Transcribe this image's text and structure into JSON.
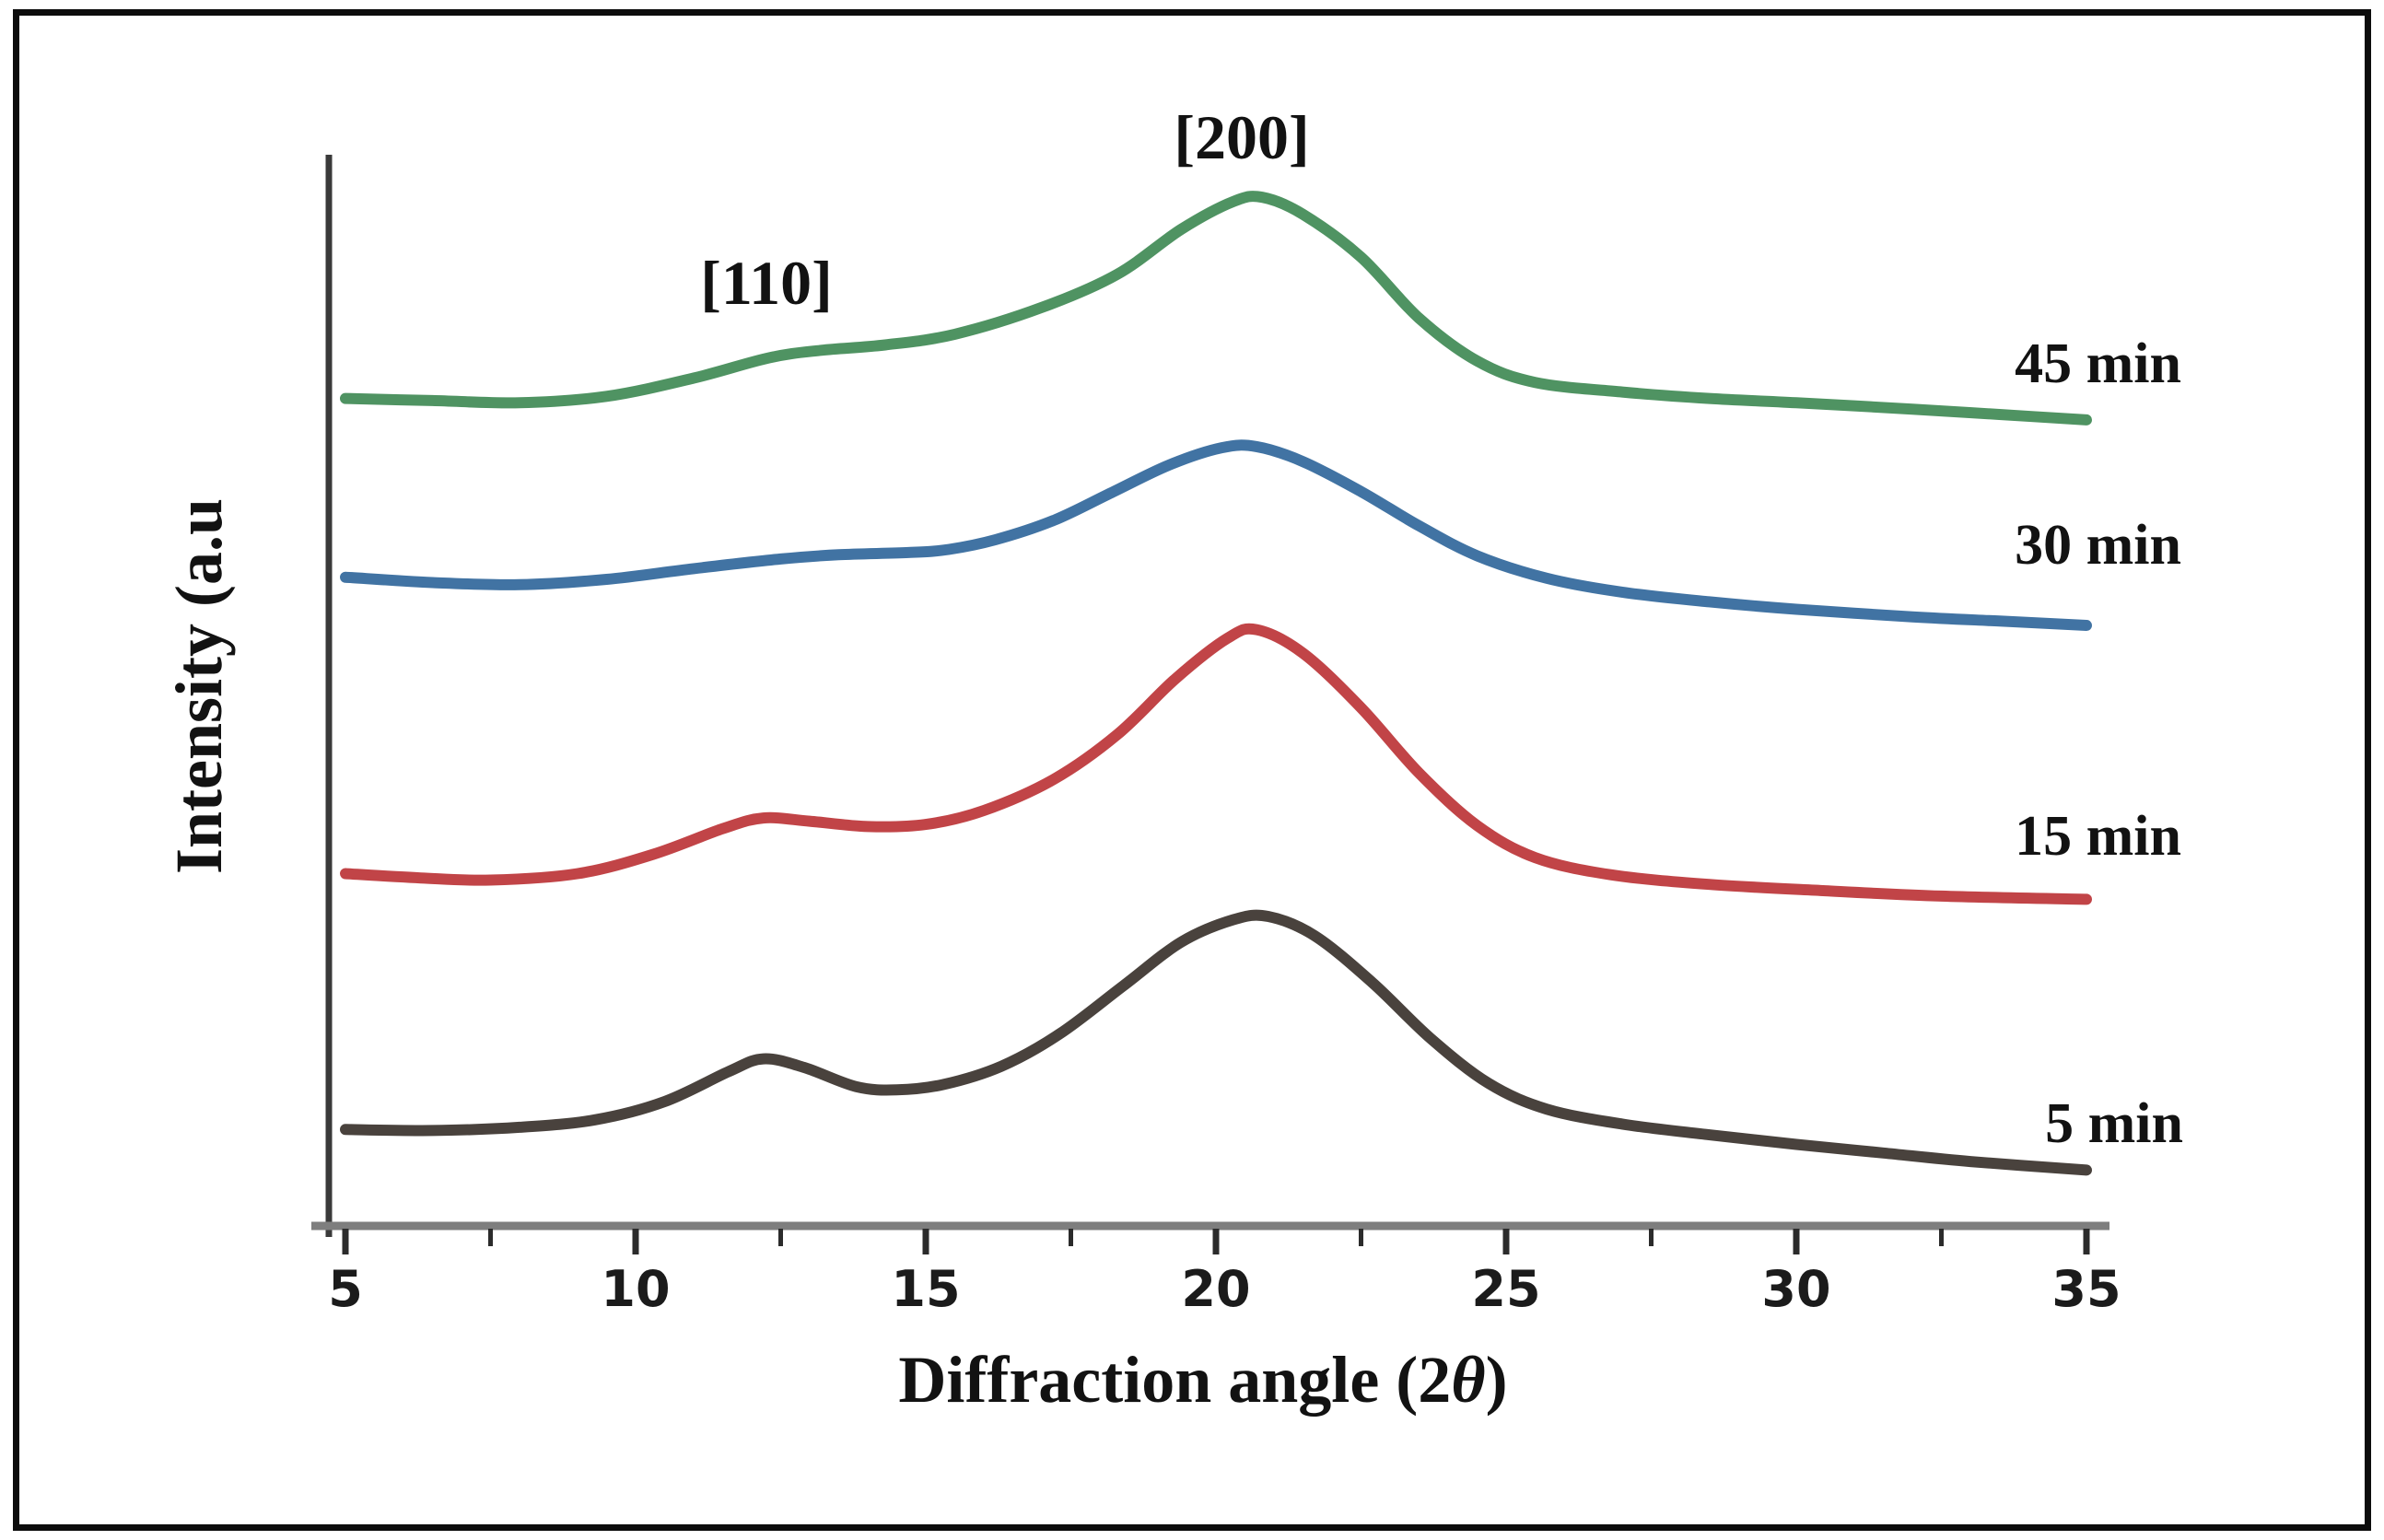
{
  "figure": {
    "frame_color": "#0c0c0c",
    "background_color": "#ffffff",
    "axis_line_color": "#7e7e7e",
    "y_axis_line_color": "#3a3a3a",
    "tick_color": "#2b2b2b",
    "text_color": "#121212"
  },
  "chart_data": {
    "type": "line",
    "title": "",
    "xlabel": "Diffraction angle (2θ)",
    "xlabel_parts": {
      "prefix": "Diffraction angle (2",
      "theta": "θ",
      "suffix": ")"
    },
    "ylabel": "Intensity (a.u",
    "x_range": [
      5,
      35
    ],
    "x_major_ticks": [
      5,
      10,
      15,
      20,
      25,
      30,
      35
    ],
    "x_minor_ticks": [
      7.5,
      12.5,
      17.5,
      22.5,
      27.5,
      32.5
    ],
    "y_axis_note": "arbitrary units, no tick labels; curves vertically offset",
    "intensity_units": "relative plot height percent (a.u.)",
    "grid": false,
    "legend_position": "labels at right end of each curve",
    "peak_annotations": [
      {
        "label": "[110]",
        "x_2theta": 12.3
      },
      {
        "label": "[200]",
        "x_2theta": 20.6
      }
    ],
    "series": [
      {
        "name": "45 min",
        "color": "#4f9362",
        "points": [
          [
            5,
            77.4
          ],
          [
            6.5,
            77.2
          ],
          [
            8,
            77.0
          ],
          [
            9.5,
            77.6
          ],
          [
            11,
            79.3
          ],
          [
            12.3,
            81.2
          ],
          [
            13.2,
            81.9
          ],
          [
            14.3,
            82.4
          ],
          [
            15.5,
            83.4
          ],
          [
            17,
            85.9
          ],
          [
            18.3,
            89.0
          ],
          [
            19.4,
            93.2
          ],
          [
            20.3,
            95.8
          ],
          [
            20.8,
            96.2
          ],
          [
            21.5,
            94.6
          ],
          [
            22.5,
            90.6
          ],
          [
            23.5,
            84.9
          ],
          [
            24.5,
            80.9
          ],
          [
            25.5,
            78.9
          ],
          [
            27,
            78.0
          ],
          [
            28.5,
            77.4
          ],
          [
            30,
            77.0
          ],
          [
            32,
            76.4
          ],
          [
            33.5,
            75.9
          ],
          [
            35,
            75.4
          ]
        ]
      },
      {
        "name": "30 min",
        "color": "#4173a3",
        "points": [
          [
            5,
            60.7
          ],
          [
            6.5,
            60.2
          ],
          [
            8,
            60.0
          ],
          [
            9.5,
            60.5
          ],
          [
            11,
            61.5
          ],
          [
            12.5,
            62.4
          ],
          [
            13.5,
            62.8
          ],
          [
            14.7,
            63.0
          ],
          [
            15.4,
            63.3
          ],
          [
            16.2,
            64.2
          ],
          [
            17.2,
            66.0
          ],
          [
            18.2,
            68.6
          ],
          [
            19.2,
            71.2
          ],
          [
            20.1,
            72.8
          ],
          [
            20.7,
            72.9
          ],
          [
            21.5,
            71.5
          ],
          [
            22.5,
            68.7
          ],
          [
            23.5,
            65.5
          ],
          [
            24.5,
            62.7
          ],
          [
            25.7,
            60.6
          ],
          [
            27,
            59.3
          ],
          [
            28.5,
            58.4
          ],
          [
            30,
            57.7
          ],
          [
            32,
            57.0
          ],
          [
            33.5,
            56.6
          ],
          [
            35,
            56.2
          ]
        ]
      },
      {
        "name": "15 min",
        "color": "#c14447",
        "points": [
          [
            5,
            33.0
          ],
          [
            6.3,
            32.6
          ],
          [
            7.5,
            32.4
          ],
          [
            9,
            33.0
          ],
          [
            10.3,
            34.8
          ],
          [
            11.5,
            37.2
          ],
          [
            12.2,
            38.2
          ],
          [
            13,
            37.9
          ],
          [
            14,
            37.4
          ],
          [
            15,
            37.6
          ],
          [
            16,
            38.9
          ],
          [
            17.2,
            41.8
          ],
          [
            18.3,
            46.0
          ],
          [
            19.3,
            51.2
          ],
          [
            20.2,
            55.0
          ],
          [
            20.7,
            55.8
          ],
          [
            21.5,
            53.6
          ],
          [
            22.5,
            48.5
          ],
          [
            23.5,
            42.4
          ],
          [
            24.5,
            37.5
          ],
          [
            25.5,
            34.5
          ],
          [
            26.8,
            32.9
          ],
          [
            28.5,
            32.0
          ],
          [
            30.5,
            31.4
          ],
          [
            32.5,
            30.9
          ],
          [
            35,
            30.6
          ]
        ]
      },
      {
        "name": "5 min",
        "color": "#49423d",
        "points": [
          [
            5,
            9.1
          ],
          [
            6.5,
            9.0
          ],
          [
            8,
            9.3
          ],
          [
            9.3,
            10.0
          ],
          [
            10.5,
            11.7
          ],
          [
            11.6,
            14.5
          ],
          [
            12.2,
            15.7
          ],
          [
            12.9,
            14.9
          ],
          [
            13.8,
            13.1
          ],
          [
            14.5,
            12.8
          ],
          [
            15.3,
            13.3
          ],
          [
            16.3,
            15.0
          ],
          [
            17.3,
            18.0
          ],
          [
            18.4,
            22.5
          ],
          [
            19.4,
            26.6
          ],
          [
            20.3,
            28.7
          ],
          [
            20.9,
            29.0
          ],
          [
            21.7,
            27.2
          ],
          [
            22.7,
            22.8
          ],
          [
            23.7,
            17.6
          ],
          [
            24.7,
            13.4
          ],
          [
            25.7,
            11.0
          ],
          [
            27,
            9.6
          ],
          [
            28.5,
            8.6
          ],
          [
            30,
            7.7
          ],
          [
            31.5,
            6.9
          ],
          [
            33,
            6.1
          ],
          [
            35,
            5.3
          ]
        ]
      }
    ]
  }
}
